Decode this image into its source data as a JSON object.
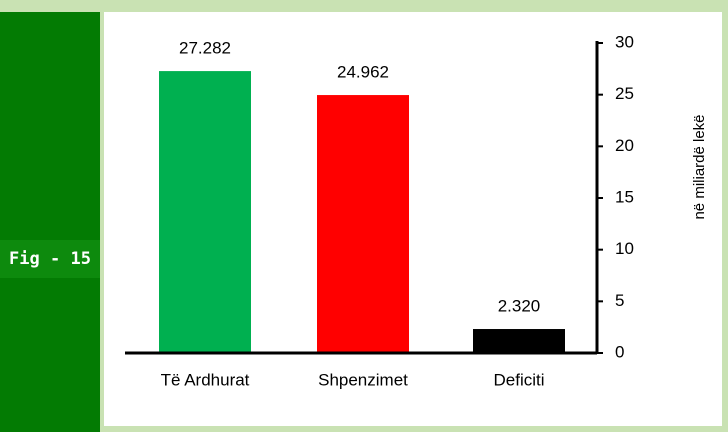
{
  "figure_label": "Fig - 15",
  "chart_data": {
    "type": "bar",
    "categories": [
      "Të Ardhurat",
      "Shpenzimet",
      "Deficiti"
    ],
    "values": [
      27.282,
      24.962,
      2.32
    ],
    "value_labels": [
      "27.282",
      "24.962",
      "2.320"
    ],
    "colors": [
      "#00b050",
      "#ff0000",
      "#000000"
    ],
    "y_axis_label": "në miliardë lekë",
    "ylim": [
      0,
      30
    ],
    "yticks": [
      0,
      5,
      10,
      15,
      20,
      25,
      30
    ],
    "grid": false
  }
}
